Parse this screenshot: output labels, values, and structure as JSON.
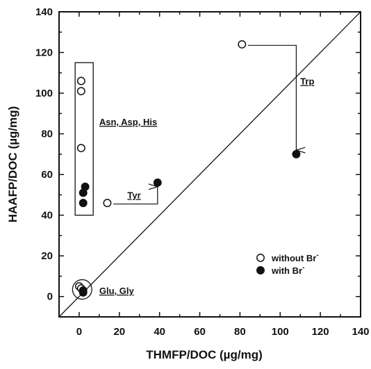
{
  "chart_data": {
    "type": "scatter",
    "xlabel": "THMFP/DOC  (µg/mg)",
    "ylabel": "HAAFP/DOC  (µg/mg)",
    "xlim": [
      -10,
      140
    ],
    "ylim": [
      -10,
      140
    ],
    "xticks": [
      0,
      20,
      40,
      60,
      80,
      100,
      120,
      140
    ],
    "yticks": [
      0,
      20,
      40,
      60,
      80,
      100,
      120,
      140
    ],
    "grid": false,
    "diagonal_line": true,
    "legend": {
      "position": "bottom-right",
      "entries": [
        {
          "label": "without Br",
          "superscript": "-",
          "marker": "open-circle"
        },
        {
          "label": "with Br",
          "superscript": "-",
          "marker": "filled-circle"
        }
      ]
    },
    "series": [
      {
        "name": "without Br-",
        "marker": "open-circle",
        "points": [
          {
            "x": 1,
            "y": 106
          },
          {
            "x": 1,
            "y": 101
          },
          {
            "x": 1,
            "y": 73
          },
          {
            "x": 14,
            "y": 46
          },
          {
            "x": 81,
            "y": 124
          },
          {
            "x": 0,
            "y": 5
          },
          {
            "x": 1,
            "y": 4
          }
        ]
      },
      {
        "name": "with Br-",
        "marker": "filled-circle",
        "points": [
          {
            "x": 3,
            "y": 54
          },
          {
            "x": 2,
            "y": 51
          },
          {
            "x": 2,
            "y": 46
          },
          {
            "x": 39,
            "y": 56
          },
          {
            "x": 108,
            "y": 70
          },
          {
            "x": 2,
            "y": 3
          },
          {
            "x": 2,
            "y": 2
          }
        ]
      }
    ],
    "annotations": [
      {
        "text": "Asn, Asp, His",
        "at": {
          "x": 10,
          "y": 86
        }
      },
      {
        "text": "Tyr",
        "at": {
          "x": 24,
          "y": 50
        }
      },
      {
        "text": "Trp",
        "at": {
          "x": 110,
          "y": 106
        }
      },
      {
        "text": "Glu, Gly",
        "at": {
          "x": 10,
          "y": 3
        }
      }
    ],
    "group_box": {
      "x": [
        -2,
        7
      ],
      "y": [
        40,
        115
      ]
    },
    "group_circle": {
      "cx": 1.5,
      "cy": 3.5,
      "r": 4.8
    },
    "arrows": [
      {
        "from": {
          "x": 17,
          "y": 45.5
        },
        "via": {
          "x": 39,
          "y": 45.5
        },
        "to": {
          "x": 39,
          "y": 54
        }
      },
      {
        "from": {
          "x": 84,
          "y": 123.5
        },
        "via": {
          "x": 108,
          "y": 123.5
        },
        "to": {
          "x": 108,
          "y": 72
        }
      }
    ]
  }
}
